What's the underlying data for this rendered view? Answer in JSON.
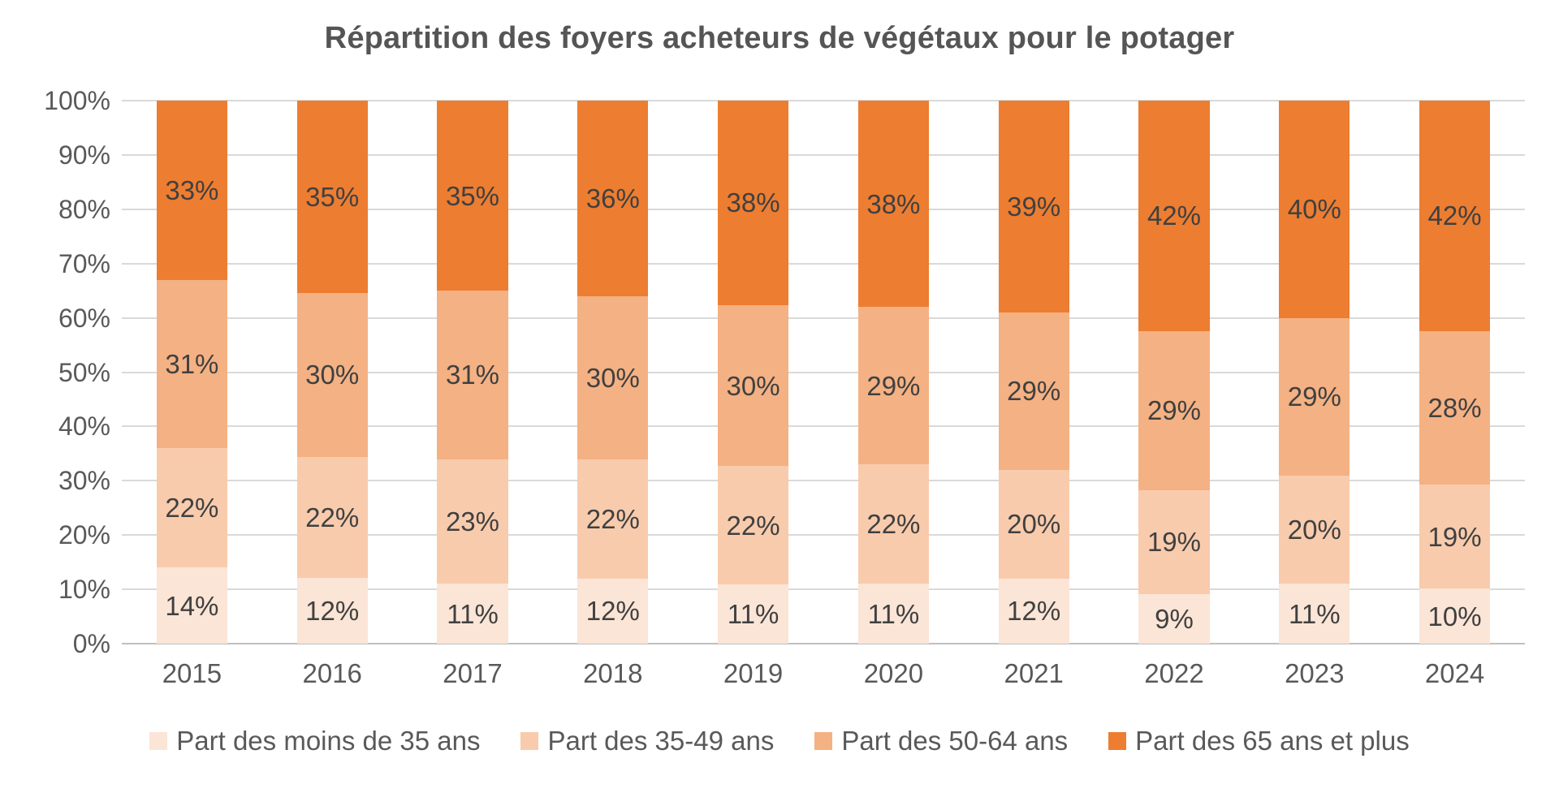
{
  "title": "Répartition des foyers acheteurs de végétaux pour le potager",
  "colors": {
    "background": "#FFFFFF",
    "gridline": "#D9D9D9",
    "axis_line": "#C0C0C0",
    "title_text": "#555555",
    "axis_text": "#595959",
    "data_label_text": "#404040",
    "series": [
      "#FBE5D6",
      "#F8CBAD",
      "#F4B183",
      "#ED7D31"
    ]
  },
  "chart_data": {
    "type": "bar",
    "stacked": true,
    "stacked_total": 100,
    "title": "Répartition des foyers acheteurs de végétaux pour le potager",
    "categories": [
      "2015",
      "2016",
      "2017",
      "2018",
      "2019",
      "2020",
      "2021",
      "2022",
      "2023",
      "2024"
    ],
    "series": [
      {
        "name": "Part des moins de 35 ans",
        "color": "#FBE5D6",
        "values": [
          14,
          12,
          11,
          12,
          11,
          11,
          12,
          9,
          11,
          10
        ]
      },
      {
        "name": "Part des 35-49 ans",
        "color": "#F8CBAD",
        "values": [
          22,
          22,
          23,
          22,
          22,
          22,
          20,
          19,
          20,
          19
        ]
      },
      {
        "name": "Part des 50-64 ans",
        "color": "#F4B183",
        "values": [
          31,
          30,
          31,
          30,
          30,
          29,
          29,
          29,
          29,
          28
        ]
      },
      {
        "name": "Part des 65 ans et plus",
        "color": "#ED7D31",
        "values": [
          33,
          35,
          35,
          36,
          38,
          38,
          39,
          42,
          40,
          42
        ]
      }
    ],
    "value_suffix": "%",
    "data_labels": true,
    "xlabel": "",
    "ylabel": "",
    "ylim": [
      0,
      100
    ],
    "y_tick_step": 10,
    "y_ticks": [
      "0%",
      "10%",
      "20%",
      "30%",
      "40%",
      "50%",
      "60%",
      "70%",
      "80%",
      "90%",
      "100%"
    ],
    "grid": true,
    "legend_position": "bottom"
  }
}
